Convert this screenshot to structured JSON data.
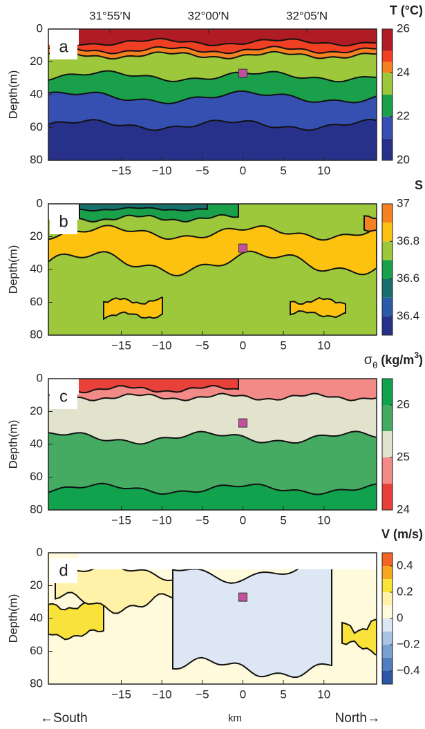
{
  "chart_data": [
    {
      "type": "contour",
      "label": "a",
      "title": [
        "T (°C)"
      ],
      "title_style": [
        "normal"
      ],
      "xlim": [
        -24,
        16.5
      ],
      "xticks": [
        {
          "value": -15,
          "label": "−15"
        },
        {
          "value": -10,
          "label": "−10"
        },
        {
          "value": -5,
          "label": "−5"
        },
        0,
        5,
        10
      ],
      "x2lim": [
        31.8646,
        32.1423
      ],
      "x2ticks": [
        {
          "value": 31.9167,
          "label": "31°55′N"
        },
        {
          "value": 32.0,
          "label": "32°00′N"
        },
        {
          "value": 32.0833,
          "label": "32°05′N"
        }
      ],
      "ylim": [
        0,
        80
      ],
      "yticks": [
        0,
        20,
        40,
        60,
        80
      ],
      "invert_y": true,
      "ylabel": "Depth(m)",
      "marker_x": 0,
      "marker_y": 27,
      "marker_color": "#c2509c",
      "colorbar": {
        "lim": [
          20,
          26
        ],
        "ticks": [
          20,
          22,
          24,
          26
        ],
        "levels": [
          20,
          21,
          22,
          23,
          24,
          24.5,
          25,
          26
        ],
        "colors": [
          "#28318a",
          "#3550b0",
          "#1aa04a",
          "#9dc83b",
          "#f58220",
          "#ef4023",
          "#b01c24"
        ]
      }
    },
    {
      "type": "contour",
      "label": "b",
      "title": [
        "S"
      ],
      "title_style": [
        "normal"
      ],
      "xlim": [
        -24,
        16.5
      ],
      "xticks": [
        {
          "value": -15,
          "label": "−15"
        },
        {
          "value": -10,
          "label": "−10"
        },
        {
          "value": -5,
          "label": "−5"
        },
        0,
        5,
        10
      ],
      "ylim": [
        0,
        80
      ],
      "yticks": [
        0,
        20,
        40,
        60,
        80
      ],
      "invert_y": true,
      "ylabel": "Depth(m)",
      "marker_x": 0,
      "marker_y": 27,
      "marker_color": "#c2509c",
      "colorbar": {
        "lim": [
          36.3,
          37
        ],
        "ticks": [
          36.4,
          36.6,
          36.8,
          37
        ],
        "levels": [
          36.3,
          36.4,
          36.5,
          36.6,
          36.7,
          36.8,
          36.9,
          37
        ],
        "colors": [
          "#28318a",
          "#2a5aa8",
          "#17706e",
          "#1aa04a",
          "#9dc83b",
          "#fdc20f",
          "#f58220"
        ]
      }
    },
    {
      "type": "contour",
      "label": "c",
      "title": [
        "σ",
        "θ",
        " (kg/m",
        "3",
        ")"
      ],
      "title_style": [
        "normal",
        "sub",
        "normal",
        "sup",
        "normal"
      ],
      "xlim": [
        -24,
        16.5
      ],
      "xticks": [
        {
          "value": -15,
          "label": "−15"
        },
        {
          "value": -10,
          "label": "−10"
        },
        {
          "value": -5,
          "label": "−5"
        },
        0,
        5,
        10
      ],
      "ylim": [
        0,
        80
      ],
      "yticks": [
        0,
        20,
        40,
        60,
        80
      ],
      "invert_y": true,
      "ylabel": "Depth(m)",
      "marker_x": 0,
      "marker_y": 27,
      "marker_color": "#c2509c",
      "colorbar": {
        "lim": [
          24,
          26.5
        ],
        "ticks": [
          24,
          25,
          26
        ],
        "levels": [
          24,
          24.5,
          25,
          25.5,
          26,
          26.5
        ],
        "colors": [
          "#e8413a",
          "#f28b87",
          "#e2e3cc",
          "#45ab62",
          "#10a24c"
        ]
      }
    },
    {
      "type": "contour",
      "label": "d",
      "title": [
        "V (m/s)"
      ],
      "title_style": [
        "normal"
      ],
      "xlim": [
        -24,
        16.5
      ],
      "xticks": [
        {
          "value": -15,
          "label": "−15"
        },
        {
          "value": -10,
          "label": "−10"
        },
        {
          "value": -5,
          "label": "−5"
        },
        0,
        5,
        10
      ],
      "ylim": [
        0,
        80
      ],
      "yticks": [
        0,
        20,
        40,
        60,
        80
      ],
      "invert_y": true,
      "ylabel": "Depth(m)",
      "xlabel": "km",
      "xlabel_left": "←South",
      "xlabel_right": "North→",
      "marker_x": 0,
      "marker_y": 27,
      "marker_color": "#c2509c",
      "colorbar": {
        "lim": [
          -0.5,
          0.5
        ],
        "ticks": [
          {
            "value": -0.4,
            "label": "−0.4"
          },
          {
            "value": -0.2,
            "label": "−0.2"
          },
          0,
          0.2,
          0.4
        ],
        "levels": [
          -0.5,
          -0.4,
          -0.3,
          -0.2,
          -0.1,
          0,
          0.1,
          0.2,
          0.3,
          0.4,
          0.5
        ],
        "colors": [
          "#2b55a5",
          "#4f7fc1",
          "#7aa0d3",
          "#a9c3e4",
          "#dde7f4",
          "#fffadc",
          "#fff2a8",
          "#f9e33a",
          "#f7a81e",
          "#f26522"
        ]
      }
    }
  ]
}
